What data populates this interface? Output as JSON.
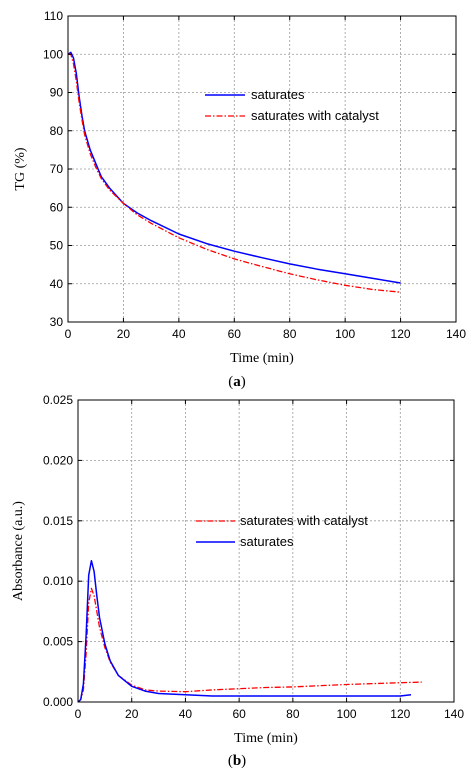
{
  "chart_data": [
    {
      "type": "line",
      "caption": "(a)",
      "caption_letter": "a",
      "xlabel": "Time (min)",
      "ylabel": "TG (%)",
      "xlim": [
        0,
        140
      ],
      "ylim": [
        30,
        110
      ],
      "xticks": [
        0,
        20,
        40,
        60,
        80,
        100,
        120,
        140
      ],
      "yticks": [
        30,
        40,
        50,
        60,
        70,
        80,
        90,
        100,
        110
      ],
      "grid": true,
      "legend_placement": "center-right",
      "series": [
        {
          "name": "saturates",
          "color": "#0000ff",
          "style": "solid",
          "x": [
            0,
            1,
            2,
            3,
            4,
            5,
            6,
            8,
            10,
            12,
            15,
            20,
            25,
            30,
            40,
            50,
            60,
            70,
            80,
            90,
            100,
            110,
            120
          ],
          "y": [
            100,
            100.5,
            99,
            95,
            89,
            84,
            80,
            75,
            71.5,
            68,
            65,
            61,
            58.5,
            56.5,
            53,
            50.5,
            48.5,
            46.8,
            45.2,
            43.8,
            42.6,
            41.4,
            40.2
          ]
        },
        {
          "name": "saturates with catalyst",
          "color": "#ff0000",
          "style": "dashdot",
          "x": [
            0,
            1,
            2,
            3,
            4,
            5,
            6,
            8,
            10,
            12,
            15,
            20,
            25,
            30,
            40,
            50,
            60,
            70,
            80,
            90,
            100,
            110,
            120
          ],
          "y": [
            100,
            100,
            97.5,
            93,
            87.5,
            83,
            79,
            74,
            70.5,
            67.5,
            64.5,
            61,
            58,
            55.8,
            52,
            49,
            46.5,
            44.5,
            42.6,
            41,
            39.6,
            38.5,
            37.8
          ]
        }
      ]
    },
    {
      "type": "line",
      "caption": "(b)",
      "caption_letter": "b",
      "xlabel": "Time (min)",
      "ylabel": "Absorbance (a.u.)",
      "xlim": [
        0,
        140
      ],
      "ylim": [
        0,
        0.025
      ],
      "xticks": [
        0,
        20,
        40,
        60,
        80,
        100,
        120,
        140
      ],
      "yticks": [
        "0.000",
        "0.005",
        "0.010",
        "0.015",
        "0.020",
        "0.025"
      ],
      "grid": true,
      "legend_placement": "center-right",
      "series": [
        {
          "name": "saturates with catalyst",
          "color": "#ff0000",
          "style": "dashdot",
          "x": [
            0,
            1,
            2,
            3,
            4,
            5,
            6,
            7,
            8,
            10,
            12,
            15,
            20,
            25,
            30,
            40,
            50,
            60,
            70,
            80,
            90,
            100,
            110,
            120,
            128
          ],
          "y": [
            0,
            0.0002,
            0.001,
            0.004,
            0.0082,
            0.0094,
            0.0088,
            0.0075,
            0.0062,
            0.0045,
            0.0033,
            0.0022,
            0.0014,
            0.001,
            0.0009,
            0.00085,
            0.001,
            0.0011,
            0.0012,
            0.00125,
            0.00135,
            0.00145,
            0.00152,
            0.0016,
            0.00165
          ]
        },
        {
          "name": "saturates",
          "color": "#0000ff",
          "style": "solid",
          "x": [
            0,
            1,
            2,
            3,
            4,
            5,
            6,
            7,
            8,
            10,
            12,
            15,
            20,
            25,
            30,
            40,
            50,
            60,
            70,
            80,
            90,
            100,
            110,
            120,
            124
          ],
          "y": [
            0,
            0.0002,
            0.0015,
            0.0055,
            0.0105,
            0.0117,
            0.0108,
            0.0088,
            0.007,
            0.0048,
            0.0034,
            0.0022,
            0.0013,
            0.0009,
            0.0007,
            0.0006,
            0.0005,
            0.0005,
            0.0005,
            0.0005,
            0.0005,
            0.0005,
            0.0005,
            0.0005,
            0.0006
          ]
        }
      ]
    }
  ]
}
